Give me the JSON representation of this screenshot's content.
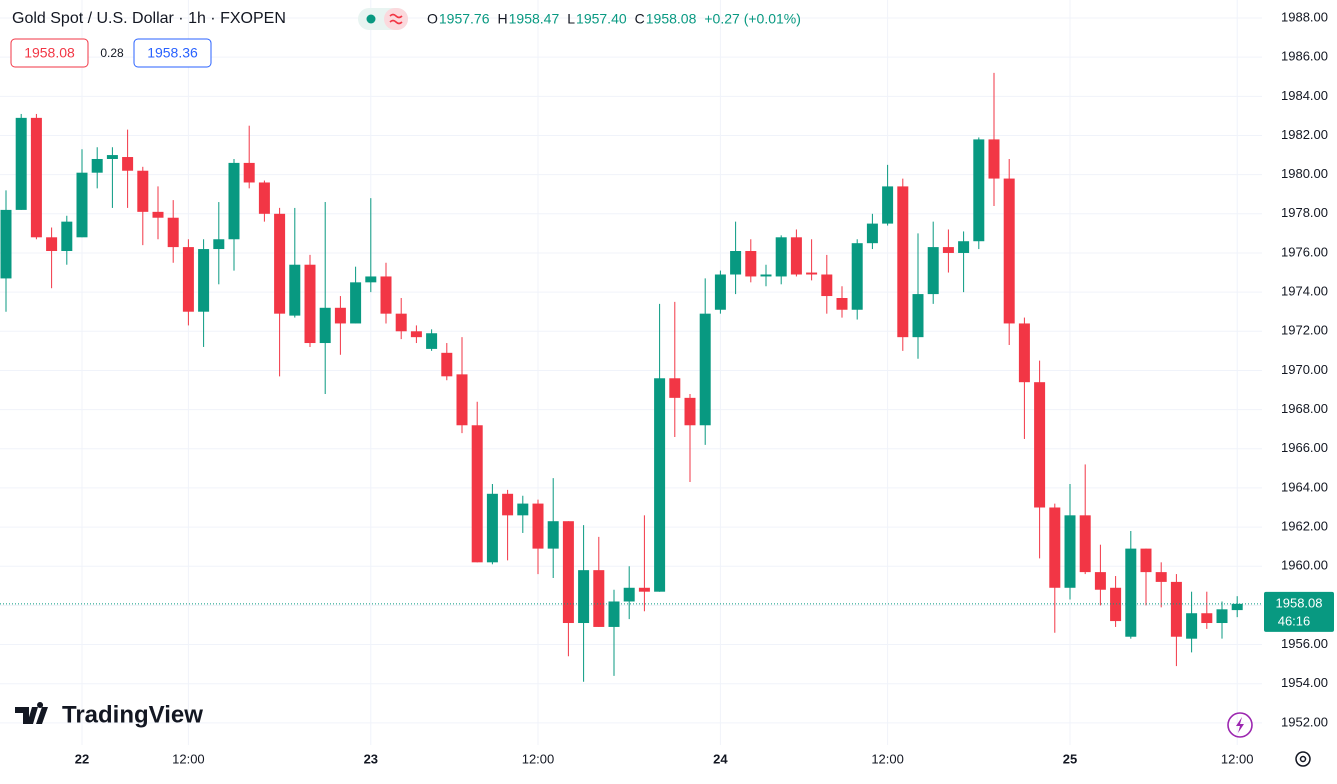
{
  "chart_data": {
    "type": "candlestick",
    "header": {
      "symbol": "Gold Spot / U.S. Dollar · 1h · FXOPEN",
      "ohlc": [
        {
          "label": "O",
          "value": "1957.76"
        },
        {
          "label": "H",
          "value": "1958.47"
        },
        {
          "label": "L",
          "value": "1957.40"
        },
        {
          "label": "C",
          "value": "1958.08"
        }
      ],
      "change": "+0.27 (+0.01%)",
      "bid": "1958.08",
      "spread": "0.28",
      "ask": "1958.36"
    },
    "last_price": {
      "value": 1958.08,
      "label": "1958.08",
      "countdown": "46:16"
    },
    "watermark": "TradingView",
    "up_color": "#089981",
    "down_color": "#f23645",
    "grid": true,
    "categories": [
      null,
      null,
      null,
      null,
      null,
      "22",
      null,
      null,
      null,
      null,
      null,
      null,
      "12:00",
      null,
      null,
      null,
      null,
      null,
      null,
      null,
      null,
      null,
      null,
      null,
      "23",
      null,
      null,
      null,
      null,
      null,
      null,
      null,
      null,
      null,
      null,
      "12:00",
      null,
      null,
      null,
      null,
      null,
      null,
      null,
      null,
      null,
      null,
      null,
      "24",
      null,
      null,
      null,
      null,
      null,
      null,
      null,
      null,
      null,
      null,
      "12:00",
      null,
      null,
      null,
      null,
      null,
      null,
      null,
      null,
      null,
      null,
      null,
      "25",
      null,
      null,
      null,
      null,
      null,
      null,
      null,
      null,
      null,
      null,
      "12:00"
    ],
    "open": [
      1974.7,
      1978.2,
      1982.9,
      1976.8,
      1976.1,
      1976.8,
      1980.1,
      1980.8,
      1980.9,
      1980.2,
      1978.1,
      1977.8,
      1976.3,
      1973.0,
      1976.2,
      1976.7,
      1980.6,
      1979.6,
      1978.0,
      1972.8,
      1975.4,
      1971.4,
      1973.2,
      1972.4,
      1974.5,
      1974.8,
      1972.9,
      1972.0,
      1971.1,
      1970.9,
      1969.8,
      1967.2,
      1960.2,
      1963.7,
      1962.6,
      1963.2,
      1960.9,
      1962.3,
      1957.1,
      1959.8,
      1956.9,
      1958.2,
      1958.9,
      1958.7,
      1969.6,
      1968.6,
      1967.2,
      1973.1,
      1974.9,
      1976.1,
      1974.8,
      1974.8,
      1976.8,
      1975.0,
      1974.9,
      1973.7,
      1973.1,
      1976.5,
      1977.5,
      1979.4,
      1971.7,
      1973.9,
      1976.3,
      1976.0,
      1976.6,
      1981.8,
      1979.8,
      1972.4,
      1969.4,
      1963.0,
      1958.9,
      1962.6,
      1959.7,
      1958.9,
      1956.4,
      1960.9,
      1959.7,
      1959.2,
      1956.3,
      1957.6,
      1957.1,
      1957.76
    ],
    "high": [
      1979.2,
      1983.1,
      1983.1,
      1977.3,
      1977.9,
      1981.3,
      1981.4,
      1981.4,
      1982.3,
      1980.4,
      1979.4,
      1978.7,
      1976.7,
      1976.7,
      1978.6,
      1980.8,
      1982.5,
      1979.7,
      1978.3,
      1978.3,
      1975.9,
      1978.6,
      1973.8,
      1975.3,
      1978.8,
      1975.5,
      1973.7,
      1972.3,
      1972.1,
      1971.4,
      1971.7,
      1968.4,
      1964.2,
      1963.9,
      1963.6,
      1963.4,
      1964.5,
      1962.3,
      1962.1,
      1961.5,
      1958.8,
      1960.0,
      1962.6,
      1973.4,
      1973.5,
      1968.8,
      1974.7,
      1975.1,
      1977.6,
      1976.7,
      1975.4,
      1976.9,
      1977.2,
      1976.7,
      1975.9,
      1974.3,
      1976.7,
      1978.0,
      1980.5,
      1979.8,
      1977.0,
      1977.6,
      1977.2,
      1977.1,
      1981.9,
      1985.2,
      1980.8,
      1972.7,
      1970.5,
      1963.2,
      1964.2,
      1965.2,
      1961.1,
      1959.5,
      1961.8,
      1960.9,
      1960.2,
      1959.6,
      1958.7,
      1958.7,
      1958.2,
      1958.47
    ],
    "low": [
      1973.0,
      1978.2,
      1976.7,
      1974.2,
      1975.4,
      1976.8,
      1979.3,
      1978.3,
      1978.3,
      1976.4,
      1976.7,
      1975.5,
      1972.3,
      1971.2,
      1974.4,
      1975.1,
      1979.3,
      1977.6,
      1969.7,
      1972.7,
      1971.2,
      1968.8,
      1970.8,
      1972.4,
      1974.0,
      1972.4,
      1971.6,
      1971.4,
      1971.0,
      1969.5,
      1966.8,
      1960.2,
      1960.1,
      1960.3,
      1961.7,
      1959.6,
      1959.4,
      1955.4,
      1954.1,
      1956.9,
      1954.4,
      1957.3,
      1957.7,
      1958.7,
      1966.6,
      1964.3,
      1966.2,
      1972.9,
      1973.9,
      1974.5,
      1974.3,
      1974.4,
      1974.8,
      1974.6,
      1972.9,
      1972.7,
      1972.6,
      1976.2,
      1977.4,
      1971.0,
      1970.6,
      1973.4,
      1975.0,
      1974.0,
      1976.2,
      1978.4,
      1971.3,
      1966.5,
      1960.4,
      1956.6,
      1958.3,
      1959.6,
      1958.0,
      1956.9,
      1956.3,
      1958.0,
      1957.9,
      1954.9,
      1955.6,
      1956.8,
      1956.3,
      1957.4
    ],
    "close": [
      1978.2,
      1982.9,
      1976.8,
      1976.1,
      1977.6,
      1980.1,
      1980.8,
      1981.0,
      1980.2,
      1978.1,
      1977.8,
      1976.3,
      1973.0,
      1976.2,
      1976.7,
      1980.6,
      1979.6,
      1978.0,
      1972.9,
      1975.4,
      1971.4,
      1973.2,
      1972.4,
      1974.5,
      1974.8,
      1972.9,
      1972.0,
      1971.7,
      1971.9,
      1969.7,
      1967.2,
      1960.2,
      1963.7,
      1962.6,
      1963.2,
      1960.9,
      1962.3,
      1957.1,
      1959.8,
      1956.9,
      1958.2,
      1958.9,
      1958.7,
      1969.6,
      1968.6,
      1967.2,
      1972.9,
      1974.9,
      1976.1,
      1974.8,
      1974.9,
      1976.8,
      1974.9,
      1974.9,
      1973.8,
      1973.1,
      1976.5,
      1977.5,
      1979.4,
      1971.7,
      1973.9,
      1976.3,
      1976.0,
      1976.6,
      1981.8,
      1979.8,
      1972.4,
      1969.4,
      1963.0,
      1958.9,
      1962.6,
      1959.7,
      1958.8,
      1957.2,
      1960.9,
      1959.7,
      1959.2,
      1956.4,
      1957.6,
      1957.1,
      1957.8,
      1958.08
    ],
    "ylim": [
      1950.87,
      1988.92
    ],
    "yticks": [
      {
        "value": 1952,
        "label": "1952.00"
      },
      {
        "value": 1954,
        "label": "1954.00"
      },
      {
        "value": 1956,
        "label": "1956.00"
      },
      {
        "value": 1958,
        "label": "1958.00"
      },
      {
        "value": 1960,
        "label": "1960.00"
      },
      {
        "value": 1962,
        "label": "1962.00"
      },
      {
        "value": 1964,
        "label": "1964.00"
      },
      {
        "value": 1966,
        "label": "1966.00"
      },
      {
        "value": 1968,
        "label": "1968.00"
      },
      {
        "value": 1970,
        "label": "1970.00"
      },
      {
        "value": 1972,
        "label": "1972.00"
      },
      {
        "value": 1974,
        "label": "1974.00"
      },
      {
        "value": 1976,
        "label": "1976.00"
      },
      {
        "value": 1978,
        "label": "1978.00"
      },
      {
        "value": 1980,
        "label": "1980.00"
      },
      {
        "value": 1982,
        "label": "1982.00"
      },
      {
        "value": 1984,
        "label": "1984.00"
      },
      {
        "value": 1986,
        "label": "1986.00"
      },
      {
        "value": 1988,
        "label": "1988.00"
      }
    ]
  }
}
